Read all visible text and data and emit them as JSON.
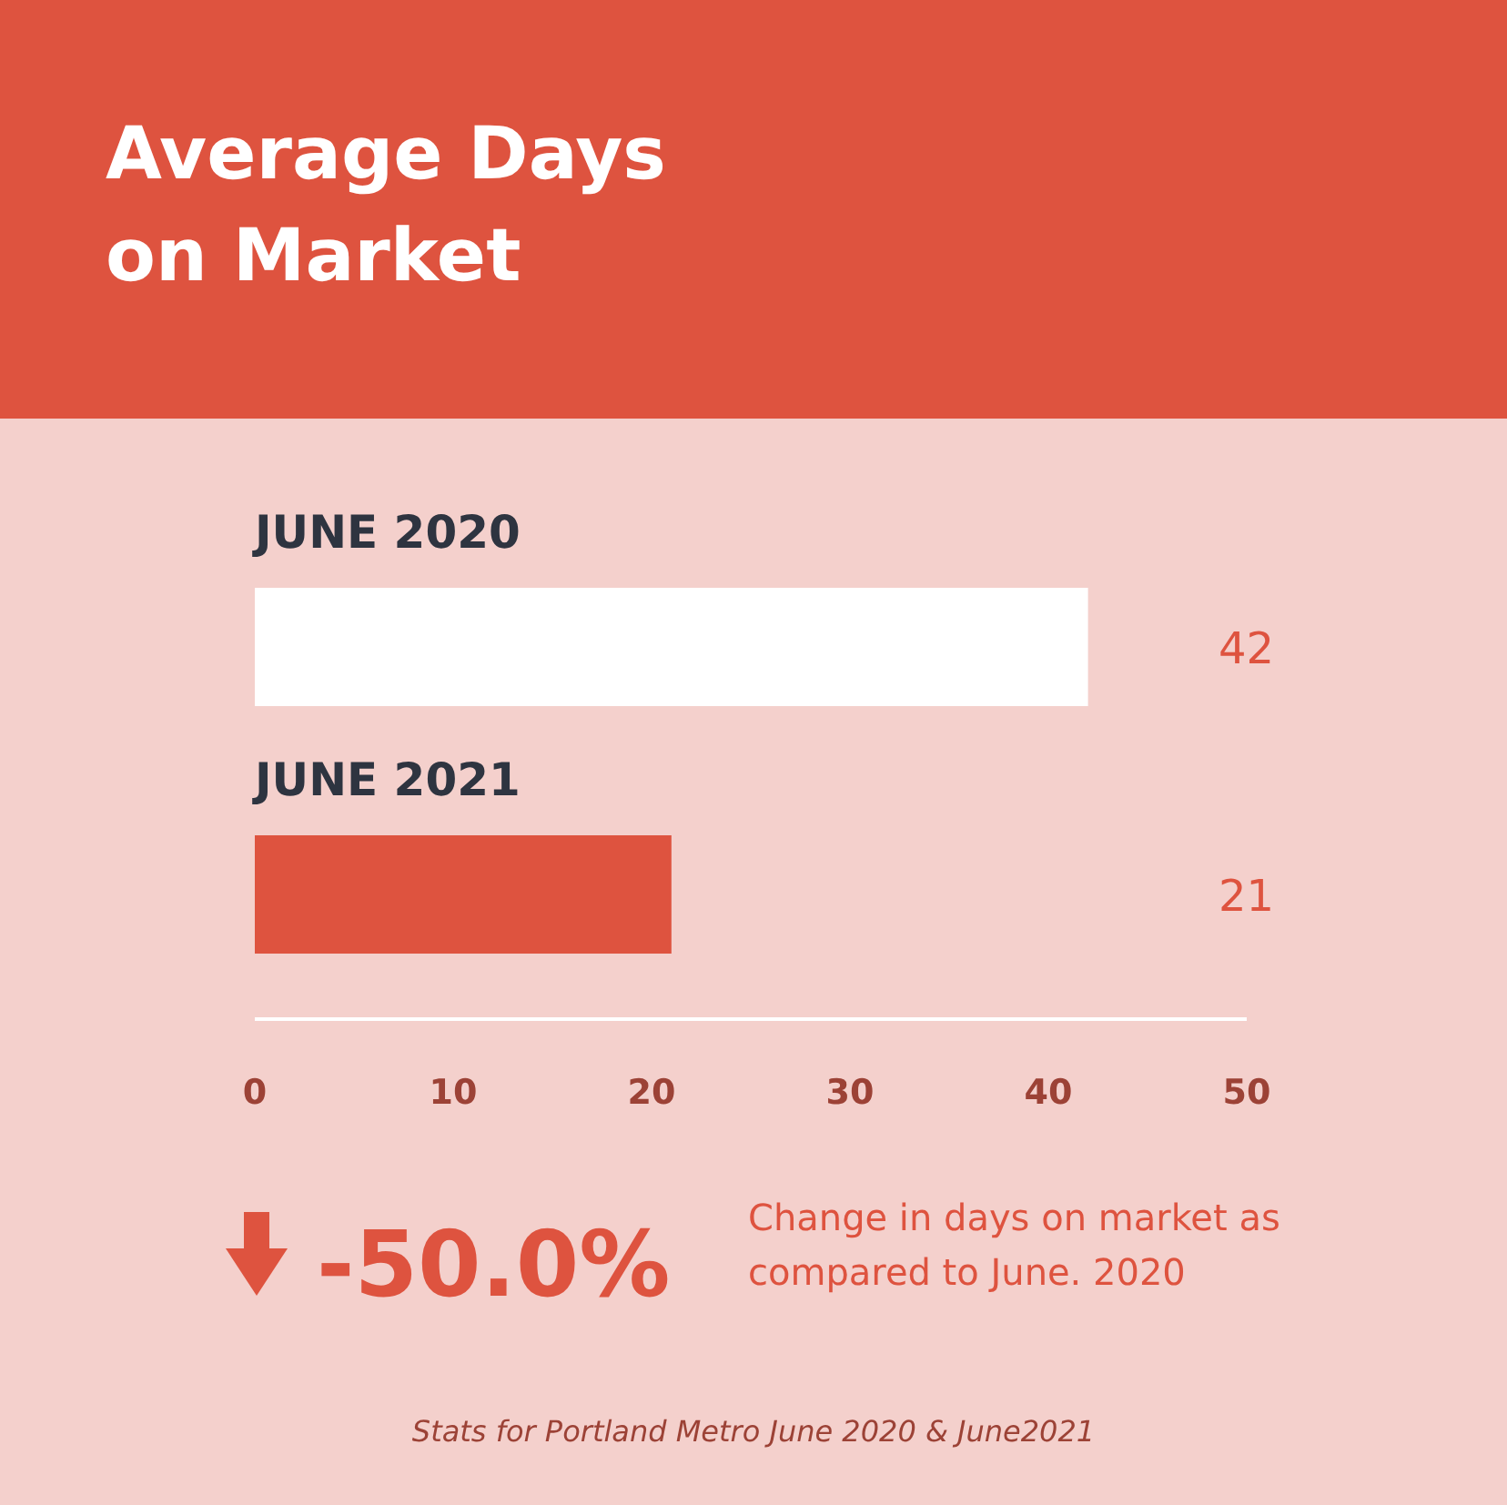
{
  "chart_data": {
    "type": "bar",
    "orientation": "horizontal",
    "title": "Average Days on Market",
    "categories": [
      "JUNE 2020",
      "JUNE 2021"
    ],
    "values": [
      42,
      21
    ],
    "colors": [
      "#ffffff",
      "#de533f"
    ],
    "data_labels": true,
    "xlim": [
      0,
      50
    ],
    "xticks": [
      0,
      10,
      20,
      30,
      40,
      50
    ],
    "grid": false,
    "annotations": [
      "-50.0%",
      "Change in days on market as compared to June. 2020",
      "Stats for Portland Metro June 2020 & June2021"
    ]
  }
}
